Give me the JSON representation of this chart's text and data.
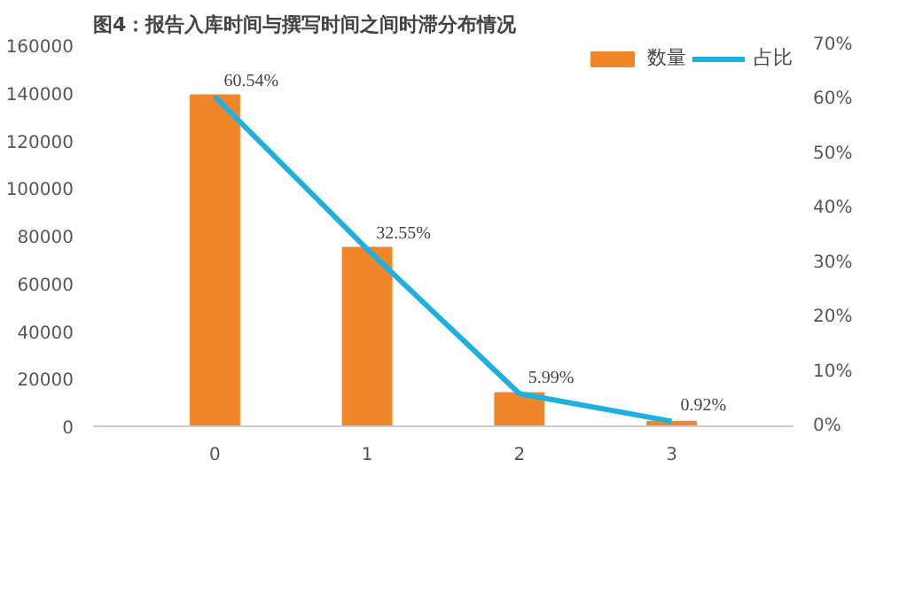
{
  "chart_data": {
    "type": "bar",
    "title": "图4：报告入库时间与撰写时间之间时滞分布情况",
    "categories": [
      "0",
      "1",
      "2",
      "3"
    ],
    "series": [
      {
        "name": "数量",
        "color": "#f0862a",
        "values": [
          139000,
          75000,
          14000,
          2000
        ]
      },
      {
        "name": "占比",
        "type": "line",
        "axis": "y2",
        "color": "#1fb0e0",
        "values": [
          60.54,
          32.55,
          5.99,
          0.92
        ],
        "value_labels": [
          "60.54%",
          "32.55%",
          "5.99%",
          "0.92%"
        ]
      }
    ],
    "ylim": [
      0,
      160000
    ],
    "yticks": [
      0,
      20000,
      40000,
      60000,
      80000,
      100000,
      120000,
      140000,
      160000
    ],
    "y2lim": [
      0,
      70
    ],
    "y2ticks": [
      {
        "value": 0,
        "label": "0%"
      },
      {
        "value": 10,
        "label": "10%"
      },
      {
        "value": 20,
        "label": "20%"
      },
      {
        "value": 30,
        "label": "30%"
      },
      {
        "value": 40,
        "label": "40%"
      },
      {
        "value": 50,
        "label": "50%"
      },
      {
        "value": 60,
        "label": "60%"
      },
      {
        "value": 70,
        "label": "70%"
      }
    ],
    "grid": false,
    "legend": "top right",
    "marker": "none",
    "line_style": "solid"
  }
}
